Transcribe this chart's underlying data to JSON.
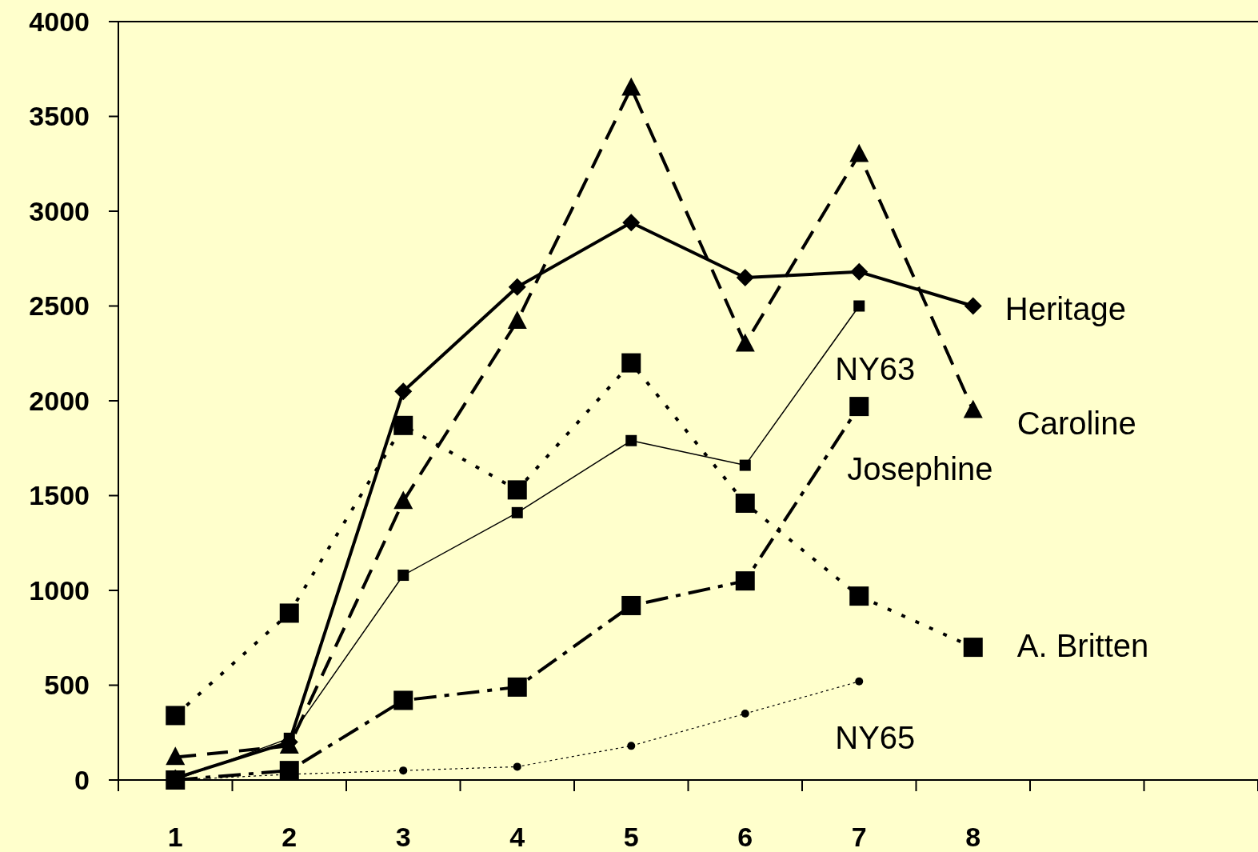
{
  "chart_data": {
    "type": "line",
    "categories": [
      "1",
      "2",
      "3",
      "4",
      "5",
      "6",
      "7",
      "8",
      null,
      null
    ],
    "series": [
      {
        "name": "Heritage",
        "color": "#000000",
        "marker": "diamond",
        "line_style": "solid",
        "values": [
          10,
          200,
          2050,
          2600,
          2940,
          2650,
          2680,
          2500,
          null,
          null
        ]
      },
      {
        "name": "Caroline",
        "color": "#000000",
        "marker": "triangle",
        "line_style": "dashed",
        "values": [
          120,
          180,
          1470,
          2420,
          3650,
          2300,
          3300,
          1950,
          null,
          null
        ]
      },
      {
        "name": "NY63",
        "color": "#000000",
        "marker": "square",
        "line_style": "solid",
        "values": [
          0,
          220,
          1080,
          1410,
          1790,
          1660,
          2500,
          null,
          null,
          null
        ]
      },
      {
        "name": "Josephine",
        "color": "#000000",
        "marker": "square",
        "line_style": "dashed",
        "values": [
          0,
          50,
          420,
          490,
          920,
          1050,
          1970,
          null,
          null,
          null
        ]
      },
      {
        "name": "A. Britten",
        "color": "#000000",
        "marker": "square",
        "line_style": "dotted",
        "values": [
          340,
          880,
          1870,
          1530,
          2200,
          1460,
          970,
          700,
          null,
          null
        ]
      },
      {
        "name": "NY65",
        "color": "#000000",
        "marker": "circle",
        "line_style": "dotted",
        "values": [
          0,
          30,
          50,
          70,
          180,
          350,
          520,
          null,
          null,
          null
        ]
      }
    ],
    "ylim": [
      0,
      4000
    ],
    "yticks": [
      0,
      500,
      1000,
      1500,
      2000,
      2500,
      3000,
      3500,
      4000
    ],
    "grid": false
  }
}
